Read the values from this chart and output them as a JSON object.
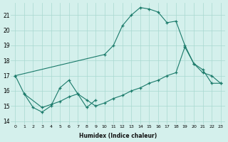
{
  "xlabel": "Humidex (Indice chaleur)",
  "bg_color": "#d4f0ec",
  "grid_color": "#a8d8d0",
  "line_color": "#1a7a6a",
  "xlim": [
    -0.5,
    23.5
  ],
  "ylim": [
    13.8,
    21.8
  ],
  "yticks": [
    14,
    15,
    16,
    17,
    18,
    19,
    20,
    21
  ],
  "xticks": [
    0,
    1,
    2,
    3,
    4,
    5,
    6,
    7,
    8,
    9,
    10,
    11,
    12,
    13,
    14,
    15,
    16,
    17,
    18,
    19,
    20,
    21,
    22,
    23
  ],
  "line1_x": [
    0,
    1,
    2,
    3,
    4,
    5,
    6,
    7,
    8,
    9
  ],
  "line1_y": [
    17.0,
    15.8,
    14.9,
    14.6,
    15.0,
    16.2,
    16.7,
    15.8,
    14.9,
    15.4
  ],
  "line2_x": [
    0,
    10,
    11,
    12,
    13,
    14,
    15,
    16,
    17,
    18,
    19,
    20,
    21,
    22,
    23
  ],
  "line2_y": [
    17.0,
    18.4,
    19.0,
    20.3,
    21.0,
    21.5,
    21.4,
    21.2,
    20.5,
    20.6,
    19.0,
    17.8,
    17.4,
    16.5,
    16.5
  ],
  "line3_x": [
    1,
    3,
    4,
    5,
    6,
    7,
    8,
    9,
    10,
    11,
    12,
    13,
    14,
    15,
    16,
    17,
    18,
    19,
    20,
    21,
    22,
    23
  ],
  "line3_y": [
    15.8,
    14.9,
    15.1,
    15.3,
    15.6,
    15.8,
    15.4,
    15.0,
    15.2,
    15.5,
    15.7,
    16.0,
    16.2,
    16.5,
    16.7,
    17.0,
    17.2,
    18.9,
    17.8,
    17.2,
    17.0,
    16.5
  ]
}
